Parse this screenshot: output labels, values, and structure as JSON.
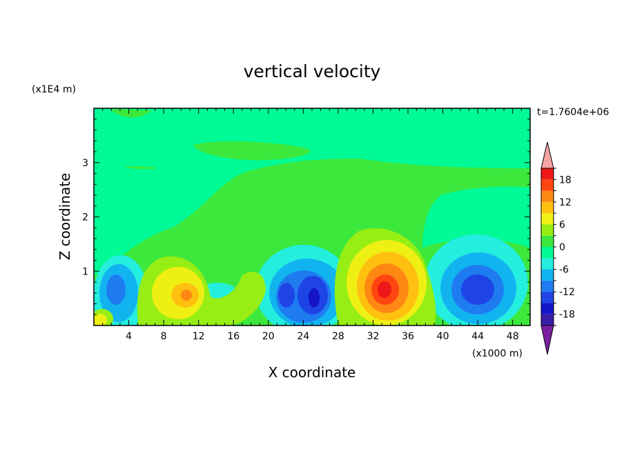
{
  "chart_data": {
    "type": "heatmap",
    "title": "vertical velocity",
    "xlabel": "X coordinate",
    "ylabel": "Z coordinate",
    "x_unit_label": "(x1000 m)",
    "y_unit_label": "(x1E4 m)",
    "time_label": "t=1.7604e+06",
    "xlim": [
      0,
      50
    ],
    "ylim": [
      0,
      4
    ],
    "x_ticks": [
      4,
      8,
      12,
      16,
      20,
      24,
      28,
      32,
      36,
      40,
      44,
      48
    ],
    "y_ticks": [
      1,
      2,
      3
    ],
    "colorbar": {
      "levels": [
        -21,
        -18,
        -15,
        -12,
        -9,
        -6,
        -3,
        0,
        3,
        6,
        9,
        12,
        15,
        18,
        21
      ],
      "labels": [
        18,
        12,
        6,
        0,
        -6,
        -12,
        -18
      ],
      "colors": [
        "#7a1fa0",
        "#3b1ea8",
        "#1414c8",
        "#1e44e6",
        "#1e7cf0",
        "#12b4f0",
        "#24eede",
        "#00fa96",
        "#3ce83c",
        "#96ee14",
        "#eef014",
        "#ffc010",
        "#ff8814",
        "#ff4610",
        "#ee1818",
        "#f5a3a3"
      ]
    },
    "features": [
      {
        "type": "updraft",
        "x": 33.5,
        "z": 0.7,
        "peak": 16
      },
      {
        "type": "updraft",
        "x": 10.5,
        "z": 0.6,
        "peak": 7
      },
      {
        "type": "updraft",
        "x": 19,
        "z": 0.8,
        "peak": 4
      },
      {
        "type": "updraft",
        "x": 1,
        "z": 0.15,
        "peak": 5
      },
      {
        "type": "downdraft",
        "x": 24.5,
        "z": 0.5,
        "peak": -13
      },
      {
        "type": "downdraft",
        "x": 21.5,
        "z": 0.55,
        "peak": -10
      },
      {
        "type": "downdraft",
        "x": 44,
        "z": 0.65,
        "peak": -12
      },
      {
        "type": "downdraft",
        "x": 2.5,
        "z": 0.7,
        "peak": -9
      }
    ]
  }
}
